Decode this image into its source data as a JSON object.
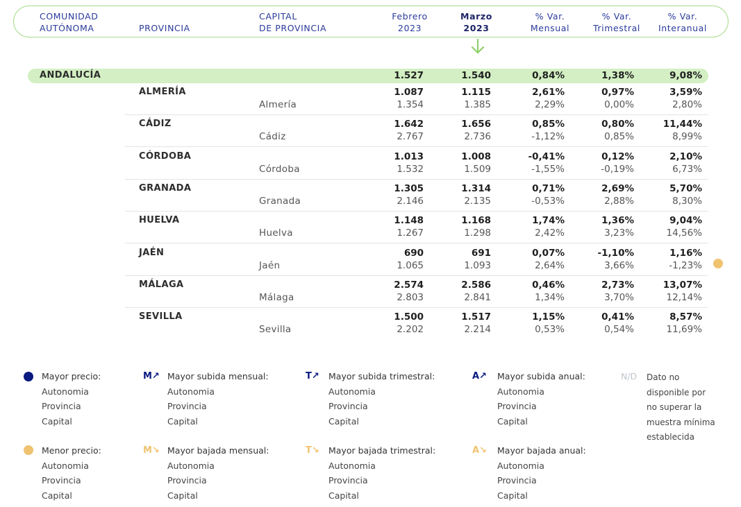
{
  "colors": {
    "header_border": "#a6dd8c",
    "header_text": "#2a3a9a",
    "region_highlight": "#d3efc3",
    "arrow": "#8fd16b",
    "max_dark": "#0a1a80",
    "min_yellow": "#f0c371",
    "na_gray": "#bfc5cc"
  },
  "header": {
    "comunidad": [
      "COMUNIDAD",
      "AUTÓNOMA"
    ],
    "provincia": "PROVINCIA",
    "capital": [
      "CAPITAL",
      "DE PROVINCIA"
    ],
    "febrero": [
      "Febrero",
      "2023"
    ],
    "marzo": [
      "Marzo",
      "2023"
    ],
    "var_mensual": [
      "% Var.",
      "Mensual"
    ],
    "var_trimestral": [
      "% Var.",
      "Trimestral"
    ],
    "var_interanual": [
      "% Var.",
      "Interanual"
    ]
  },
  "region": {
    "name": "ANDALUCÍA",
    "feb": "1.527",
    "mar": "1.540",
    "mensual": "0,84%",
    "trimestral": "1,38%",
    "interanual": "9,08%"
  },
  "provinces": [
    {
      "name": "ALMERÍA",
      "feb": "1.087",
      "mar": "1.115",
      "mensual": "2,61%",
      "trimestral": "0,97%",
      "interanual": "3,59%",
      "capital": {
        "name": "Almería",
        "feb": "1.354",
        "mar": "1.385",
        "mensual": "2,29%",
        "trimestral": "0,00%",
        "interanual": "2,80%"
      }
    },
    {
      "name": "CÁDIZ",
      "feb": "1.642",
      "mar": "1.656",
      "mensual": "0,85%",
      "trimestral": "0,80%",
      "interanual": "11,44%",
      "capital": {
        "name": "Cádiz",
        "feb": "2.767",
        "mar": "2.736",
        "mensual": "-1,12%",
        "trimestral": "0,85%",
        "interanual": "8,99%"
      }
    },
    {
      "name": "CÓRDOBA",
      "feb": "1.013",
      "mar": "1.008",
      "mensual": "-0,41%",
      "trimestral": "0,12%",
      "interanual": "2,10%",
      "capital": {
        "name": "Córdoba",
        "feb": "1.532",
        "mar": "1.509",
        "mensual": "-1,55%",
        "trimestral": "-0,19%",
        "interanual": "6,73%"
      }
    },
    {
      "name": "GRANADA",
      "feb": "1.305",
      "mar": "1.314",
      "mensual": "0,71%",
      "trimestral": "2,69%",
      "interanual": "5,70%",
      "capital": {
        "name": "Granada",
        "feb": "2.146",
        "mar": "2.135",
        "mensual": "-0,53%",
        "trimestral": "2,88%",
        "interanual": "8,30%"
      }
    },
    {
      "name": "HUELVA",
      "feb": "1.148",
      "mar": "1.168",
      "mensual": "1,74%",
      "trimestral": "1,36%",
      "interanual": "9,04%",
      "capital": {
        "name": "Huelva",
        "feb": "1.267",
        "mar": "1.298",
        "mensual": "2,42%",
        "trimestral": "3,23%",
        "interanual": "14,56%"
      }
    },
    {
      "name": "JAÉN",
      "feb": "690",
      "mar": "691",
      "mensual": "0,07%",
      "trimestral": "-1,10%",
      "interanual": "1,16%",
      "capital": {
        "name": "Jaén",
        "feb": "1.065",
        "mar": "1.093",
        "mensual": "2,64%",
        "trimestral": "3,66%",
        "interanual": "-1,23%"
      }
    },
    {
      "name": "MÁLAGA",
      "feb": "2.574",
      "mar": "2.586",
      "mensual": "0,46%",
      "trimestral": "2,73%",
      "interanual": "13,07%",
      "capital": {
        "name": "Málaga",
        "feb": "2.803",
        "mar": "2.841",
        "mensual": "1,34%",
        "trimestral": "3,70%",
        "interanual": "12,14%"
      }
    },
    {
      "name": "SEVILLA",
      "feb": "1.500",
      "mar": "1.517",
      "mensual": "1,15%",
      "trimestral": "0,41%",
      "interanual": "8,57%",
      "capital": {
        "name": "Sevilla",
        "feb": "2.202",
        "mar": "2.214",
        "mensual": "0,53%",
        "trimestral": "0,54%",
        "interanual": "11,69%"
      }
    }
  ],
  "legend": {
    "mayor_precio": {
      "title": "Mayor precio:",
      "items": [
        "Autonomia",
        "Provincia",
        "Capital"
      ]
    },
    "menor_precio": {
      "title": "Menor precio:",
      "items": [
        "Autonomia",
        "Provincia",
        "Capital"
      ]
    },
    "subida_mensual": {
      "icon": "M↗",
      "title": "Mayor subida mensual:",
      "items": [
        "Autonomia",
        "Provincia",
        "Capital"
      ]
    },
    "bajada_mensual": {
      "icon": "M↘",
      "title": "Mayor bajada mensual:",
      "items": [
        "Autonomia",
        "Provincia",
        "Capital"
      ]
    },
    "subida_trimestral": {
      "icon": "T↗",
      "title": "Mayor subida trimestral:",
      "items": [
        "Autonomia",
        "Provincia",
        "Capital"
      ]
    },
    "bajada_trimestral": {
      "icon": "T↘",
      "title": "Mayor bajada trimestral:",
      "items": [
        "Autonomia",
        "Provincia",
        "Capital"
      ]
    },
    "subida_anual": {
      "icon": "A↗",
      "title": "Mayor subida anual:",
      "items": [
        "Autonomia",
        "Provincia",
        "Capital"
      ]
    },
    "bajada_anual": {
      "icon": "A↘",
      "title": "Mayor bajada anual:",
      "items": [
        "Autonomia",
        "Provincia",
        "Capital"
      ]
    },
    "na": {
      "icon": "N/D",
      "lines": [
        "Dato no",
        "disponible por",
        "no superar la",
        "muestra mínima",
        "establecida"
      ]
    }
  }
}
